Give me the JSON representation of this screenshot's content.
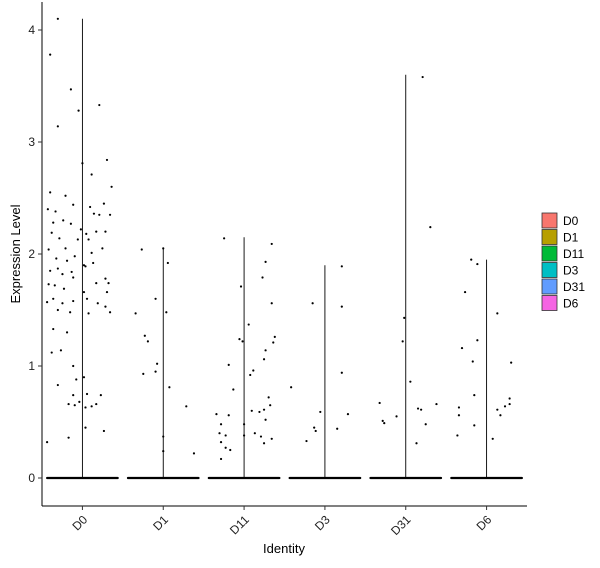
{
  "chart_data": {
    "type": "violin",
    "xlabel": "Identity",
    "ylabel": "Expression Level",
    "ylim": [
      -0.25,
      4.25
    ],
    "yticks": [
      0,
      1,
      2,
      3,
      4
    ],
    "categories": [
      "D0",
      "D1",
      "D11",
      "D3",
      "D31",
      "D6"
    ],
    "legend": {
      "placement": "right",
      "entries": [
        {
          "label": "D0",
          "color": "#F8766D"
        },
        {
          "label": "D1",
          "color": "#B79F00"
        },
        {
          "label": "D11",
          "color": "#00BA38"
        },
        {
          "label": "D3",
          "color": "#00BFC4"
        },
        {
          "label": "D31",
          "color": "#619CFF"
        },
        {
          "label": "D6",
          "color": "#F564E3"
        }
      ]
    },
    "series": [
      {
        "category": "D0",
        "max": 4.1,
        "points": [
          [
            -0.42,
            3.78
          ],
          [
            -0.32,
            4.1
          ],
          [
            -0.15,
            3.47
          ],
          [
            0.22,
            3.33
          ],
          [
            -0.32,
            3.14
          ],
          [
            -0.05,
            3.28
          ],
          [
            0.0,
            2.81
          ],
          [
            0.12,
            2.71
          ],
          [
            0.32,
            2.84
          ],
          [
            -0.42,
            2.55
          ],
          [
            -0.22,
            2.52
          ],
          [
            -0.45,
            2.4
          ],
          [
            -0.35,
            2.38
          ],
          [
            -0.12,
            2.44
          ],
          [
            0.1,
            2.42
          ],
          [
            0.28,
            2.45
          ],
          [
            0.38,
            2.6
          ],
          [
            -0.38,
            2.28
          ],
          [
            -0.25,
            2.3
          ],
          [
            -0.15,
            2.27
          ],
          [
            -0.02,
            2.22
          ],
          [
            0.05,
            2.18
          ],
          [
            0.15,
            2.36
          ],
          [
            0.22,
            2.35
          ],
          [
            0.36,
            2.35
          ],
          [
            -0.4,
            2.19
          ],
          [
            -0.3,
            2.14
          ],
          [
            -0.22,
            2.05
          ],
          [
            -0.06,
            2.13
          ],
          [
            0.08,
            2.13
          ],
          [
            0.18,
            2.2
          ],
          [
            0.3,
            2.2
          ],
          [
            -0.44,
            2.04
          ],
          [
            -0.34,
            1.96
          ],
          [
            -0.2,
            1.94
          ],
          [
            -0.1,
            1.98
          ],
          [
            0.02,
            1.9
          ],
          [
            0.12,
            2.01
          ],
          [
            0.26,
            2.05
          ],
          [
            -0.42,
            1.85
          ],
          [
            -0.32,
            1.87
          ],
          [
            -0.26,
            1.82
          ],
          [
            -0.14,
            1.84
          ],
          [
            0.04,
            1.89
          ],
          [
            0.14,
            1.92
          ],
          [
            0.3,
            1.78
          ],
          [
            0.34,
            1.74
          ],
          [
            -0.44,
            1.73
          ],
          [
            -0.36,
            1.72
          ],
          [
            -0.24,
            1.69
          ],
          [
            -0.12,
            1.79
          ],
          [
            0.02,
            1.66
          ],
          [
            0.18,
            1.74
          ],
          [
            0.32,
            1.66
          ],
          [
            -0.46,
            1.57
          ],
          [
            -0.38,
            1.6
          ],
          [
            -0.26,
            1.56
          ],
          [
            -0.12,
            1.58
          ],
          [
            0.06,
            1.6
          ],
          [
            0.2,
            1.56
          ],
          [
            0.3,
            1.53
          ],
          [
            0.36,
            1.48
          ],
          [
            -0.32,
            1.5
          ],
          [
            -0.16,
            1.48
          ],
          [
            0.08,
            1.47
          ],
          [
            -0.38,
            1.33
          ],
          [
            -0.2,
            1.3
          ],
          [
            -0.4,
            1.12
          ],
          [
            -0.28,
            1.14
          ],
          [
            -0.12,
            1.0
          ],
          [
            -0.32,
            0.83
          ],
          [
            -0.08,
            0.88
          ],
          [
            0.02,
            0.9
          ],
          [
            -0.12,
            0.74
          ],
          [
            0.06,
            0.75
          ],
          [
            0.24,
            0.74
          ],
          [
            -0.18,
            0.66
          ],
          [
            -0.1,
            0.65
          ],
          [
            -0.04,
            0.68
          ],
          [
            0.04,
            0.63
          ],
          [
            0.12,
            0.64
          ],
          [
            0.18,
            0.66
          ],
          [
            -0.46,
            0.32
          ],
          [
            -0.18,
            0.36
          ],
          [
            0.04,
            0.45
          ],
          [
            0.28,
            0.42
          ]
        ]
      },
      {
        "category": "D1",
        "max": 2.05,
        "points": [
          [
            0.0,
            2.05
          ],
          [
            -0.28,
            2.04
          ],
          [
            0.06,
            1.92
          ],
          [
            -0.1,
            1.6
          ],
          [
            0.04,
            1.48
          ],
          [
            -0.36,
            1.47
          ],
          [
            -0.24,
            1.27
          ],
          [
            -0.2,
            1.22
          ],
          [
            -0.08,
            1.02
          ],
          [
            -0.1,
            0.95
          ],
          [
            -0.26,
            0.93
          ],
          [
            0.08,
            0.81
          ],
          [
            0.3,
            0.64
          ],
          [
            0.0,
            0.37
          ],
          [
            0.0,
            0.24
          ],
          [
            0.4,
            0.22
          ]
        ]
      },
      {
        "category": "D11",
        "max": 2.15,
        "points": [
          [
            -0.26,
            2.14
          ],
          [
            0.36,
            2.09
          ],
          [
            0.28,
            1.93
          ],
          [
            0.24,
            1.79
          ],
          [
            -0.04,
            1.71
          ],
          [
            0.36,
            1.56
          ],
          [
            0.06,
            1.37
          ],
          [
            -0.06,
            1.24
          ],
          [
            -0.02,
            1.22
          ],
          [
            0.4,
            1.26
          ],
          [
            0.38,
            1.21
          ],
          [
            0.28,
            1.14
          ],
          [
            0.26,
            1.06
          ],
          [
            0.12,
            0.96
          ],
          [
            0.08,
            0.92
          ],
          [
            -0.2,
            1.01
          ],
          [
            -0.14,
            0.79
          ],
          [
            0.32,
            0.72
          ],
          [
            0.34,
            0.65
          ],
          [
            0.26,
            0.61
          ],
          [
            0.2,
            0.59
          ],
          [
            0.1,
            0.6
          ],
          [
            -0.2,
            0.56
          ],
          [
            -0.36,
            0.57
          ],
          [
            -0.3,
            0.48
          ],
          [
            0.28,
            0.52
          ],
          [
            0.0,
            0.48
          ],
          [
            -0.32,
            0.4
          ],
          [
            -0.24,
            0.38
          ],
          [
            0.14,
            0.4
          ],
          [
            0.22,
            0.37
          ],
          [
            0.36,
            0.35
          ],
          [
            0.0,
            0.38
          ],
          [
            -0.3,
            0.32
          ],
          [
            -0.24,
            0.27
          ],
          [
            0.26,
            0.31
          ],
          [
            -0.18,
            0.25
          ],
          [
            -0.3,
            0.17
          ]
        ]
      },
      {
        "category": "D3",
        "max": 1.9,
        "points": [
          [
            0.22,
            1.89
          ],
          [
            -0.16,
            1.56
          ],
          [
            0.22,
            1.53
          ],
          [
            0.22,
            0.94
          ],
          [
            -0.44,
            0.81
          ],
          [
            -0.06,
            0.59
          ],
          [
            0.3,
            0.57
          ],
          [
            -0.14,
            0.45
          ],
          [
            -0.12,
            0.42
          ],
          [
            0.16,
            0.44
          ],
          [
            -0.24,
            0.33
          ]
        ]
      },
      {
        "category": "D31",
        "max": 3.6,
        "points": [
          [
            0.22,
            3.58
          ],
          [
            0.32,
            2.24
          ],
          [
            -0.02,
            1.43
          ],
          [
            -0.04,
            1.22
          ],
          [
            0.06,
            0.86
          ],
          [
            -0.34,
            0.67
          ],
          [
            0.4,
            0.66
          ],
          [
            0.16,
            0.62
          ],
          [
            0.2,
            0.61
          ],
          [
            -0.12,
            0.55
          ],
          [
            -0.3,
            0.51
          ],
          [
            -0.28,
            0.49
          ],
          [
            0.26,
            0.48
          ],
          [
            0.14,
            0.31
          ]
        ]
      },
      {
        "category": "D6",
        "max": 1.95,
        "points": [
          [
            -0.2,
            1.95
          ],
          [
            -0.12,
            1.91
          ],
          [
            -0.28,
            1.66
          ],
          [
            0.14,
            1.47
          ],
          [
            -0.12,
            1.23
          ],
          [
            -0.32,
            1.16
          ],
          [
            0.32,
            1.03
          ],
          [
            -0.18,
            1.04
          ],
          [
            -0.16,
            0.74
          ],
          [
            0.3,
            0.71
          ],
          [
            0.3,
            0.66
          ],
          [
            -0.36,
            0.63
          ],
          [
            0.24,
            0.64
          ],
          [
            0.14,
            0.61
          ],
          [
            -0.36,
            0.56
          ],
          [
            0.18,
            0.56
          ],
          [
            -0.16,
            0.47
          ],
          [
            -0.38,
            0.38
          ],
          [
            0.08,
            0.35
          ]
        ]
      }
    ]
  }
}
